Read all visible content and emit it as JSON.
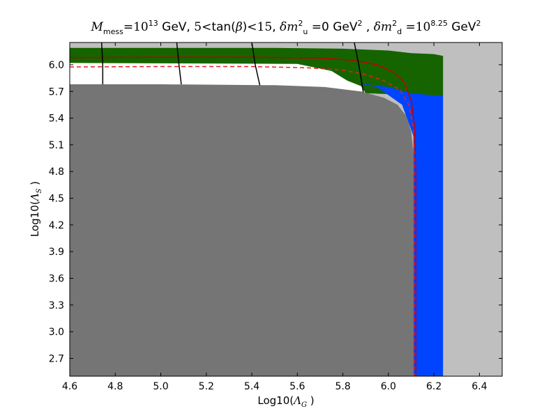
{
  "chart_data": {
    "type": "area",
    "title": {
      "parts": [
        {
          "t": "M",
          "s": "it"
        },
        {
          "t": "mess",
          "s": "sub"
        },
        {
          "t": "=10",
          "s": "rm"
        },
        {
          "t": "13",
          "s": "sup"
        },
        {
          "t": " GeV, ",
          "s": "n"
        },
        {
          "t": "5",
          "s": "rm"
        },
        {
          "t": "<",
          "s": "rm"
        },
        {
          "t": "tan(",
          "s": "n"
        },
        {
          "t": "β",
          "s": "it"
        },
        {
          "t": ")",
          "s": "n"
        },
        {
          "t": "<",
          "s": "rm"
        },
        {
          "t": "15",
          "s": "rm"
        },
        {
          "t": ", ",
          "s": "n"
        },
        {
          "t": "δm",
          "s": "it"
        },
        {
          "t": "2",
          "s": "sup"
        },
        {
          "t": "u",
          "s": "sub"
        },
        {
          "t": " =0 GeV",
          "s": "n"
        },
        {
          "t": "2",
          "s": "sup"
        },
        {
          "t": " , ",
          "s": "n"
        },
        {
          "t": "δm",
          "s": "it"
        },
        {
          "t": "2",
          "s": "sup"
        },
        {
          "t": "d",
          "s": "sub"
        },
        {
          "t": " =10",
          "s": "rm"
        },
        {
          "t": "8.25",
          "s": "sup"
        },
        {
          "t": " GeV",
          "s": "n"
        },
        {
          "t": "2",
          "s": "sup"
        }
      ]
    },
    "xlabel": {
      "pre": "Log10(",
      "sym": "Λ",
      "sub": "G",
      "post": " )"
    },
    "ylabel": {
      "pre": "Log10(",
      "sym": "Λ",
      "sub": "S",
      "post": " )"
    },
    "xlim": [
      4.6,
      6.5
    ],
    "ylim": [
      2.5,
      6.25
    ],
    "xticks": [
      4.6,
      4.8,
      5.0,
      5.2,
      5.4,
      5.6,
      5.8,
      6.0,
      6.2,
      6.4
    ],
    "yticks": [
      2.7,
      3.0,
      3.3,
      3.6,
      3.9,
      4.2,
      4.5,
      4.8,
      5.1,
      5.4,
      5.7,
      6.0
    ],
    "grid": false,
    "legend": "none",
    "regions": [
      {
        "name": "excluded-light",
        "color": "#bfbfbf",
        "polygon": [
          [
            4.6,
            2.5
          ],
          [
            6.5,
            2.5
          ],
          [
            6.5,
            6.25
          ],
          [
            4.6,
            6.25
          ]
        ]
      },
      {
        "name": "green-region",
        "color": "#166400",
        "polygon": [
          [
            4.6,
            6.19
          ],
          [
            5.5,
            6.19
          ],
          [
            5.8,
            6.18
          ],
          [
            6.0,
            6.16
          ],
          [
            6.1,
            6.13
          ],
          [
            6.2,
            6.12
          ],
          [
            6.24,
            6.1
          ],
          [
            6.24,
            5.65
          ],
          [
            6.18,
            5.65
          ],
          [
            5.9,
            5.68
          ],
          [
            5.7,
            5.73
          ],
          [
            5.5,
            5.76
          ],
          [
            4.6,
            5.76
          ]
        ]
      },
      {
        "name": "white-region",
        "color": "#ffffff",
        "polygon": [
          [
            4.6,
            6.02
          ],
          [
            5.6,
            6.01
          ],
          [
            5.75,
            5.93
          ],
          [
            5.82,
            5.82
          ],
          [
            5.88,
            5.76
          ],
          [
            5.9,
            5.68
          ],
          [
            4.6,
            5.68
          ]
        ]
      },
      {
        "name": "blue-region",
        "color": "#0044ff",
        "polygon": [
          [
            5.85,
            5.8
          ],
          [
            6.0,
            5.75
          ],
          [
            6.1,
            5.68
          ],
          [
            6.18,
            5.66
          ],
          [
            6.24,
            5.65
          ],
          [
            6.24,
            2.5
          ],
          [
            6.11,
            2.5
          ],
          [
            6.11,
            5.2
          ],
          [
            6.06,
            5.55
          ],
          [
            5.95,
            5.75
          ]
        ]
      },
      {
        "name": "excluded-dark",
        "color": "#757575",
        "polygon": [
          [
            4.6,
            2.5
          ],
          [
            6.11,
            2.5
          ],
          [
            6.11,
            5.0
          ],
          [
            6.1,
            5.25
          ],
          [
            6.08,
            5.42
          ],
          [
            6.04,
            5.55
          ],
          [
            5.98,
            5.63
          ],
          [
            5.88,
            5.7
          ],
          [
            5.72,
            5.75
          ],
          [
            5.5,
            5.77
          ],
          [
            5.0,
            5.78
          ],
          [
            4.6,
            5.78
          ]
        ]
      }
    ],
    "curves": [
      {
        "name": "red-solid",
        "color": "#c00000",
        "style": "solid",
        "points": [
          [
            4.6,
            6.08
          ],
          [
            5.0,
            6.085
          ],
          [
            5.4,
            6.085
          ],
          [
            5.7,
            6.075
          ],
          [
            5.85,
            6.05
          ],
          [
            5.95,
            6.0
          ],
          [
            6.02,
            5.92
          ],
          [
            6.07,
            5.8
          ],
          [
            6.1,
            5.6
          ],
          [
            6.115,
            5.3
          ],
          [
            6.12,
            4.8
          ],
          [
            6.12,
            2.5
          ]
        ]
      },
      {
        "name": "red-dashed",
        "color": "#e02020",
        "style": "dashed",
        "points": [
          [
            4.6,
            5.975
          ],
          [
            5.0,
            5.98
          ],
          [
            5.4,
            5.98
          ],
          [
            5.65,
            5.965
          ],
          [
            5.8,
            5.94
          ],
          [
            5.9,
            5.89
          ],
          [
            5.98,
            5.82
          ],
          [
            6.05,
            5.72
          ],
          [
            6.09,
            5.55
          ],
          [
            6.11,
            5.3
          ],
          [
            6.115,
            5.0
          ],
          [
            6.115,
            2.5
          ]
        ]
      },
      {
        "name": "black-contour-1",
        "color": "#000000",
        "style": "solid",
        "points": [
          [
            4.74,
            6.25
          ],
          [
            4.745,
            6.0
          ],
          [
            4.745,
            5.78
          ]
        ]
      },
      {
        "name": "black-contour-2",
        "color": "#000000",
        "style": "solid",
        "points": [
          [
            5.07,
            6.25
          ],
          [
            5.08,
            6.0
          ],
          [
            5.09,
            5.78
          ]
        ]
      },
      {
        "name": "black-contour-3",
        "color": "#000000",
        "style": "solid",
        "points": [
          [
            5.4,
            6.25
          ],
          [
            5.415,
            6.0
          ],
          [
            5.435,
            5.77
          ]
        ]
      },
      {
        "name": "black-contour-4",
        "color": "#000000",
        "style": "solid",
        "points": [
          [
            5.85,
            6.25
          ],
          [
            5.87,
            6.0
          ],
          [
            5.89,
            5.69
          ]
        ]
      }
    ]
  }
}
